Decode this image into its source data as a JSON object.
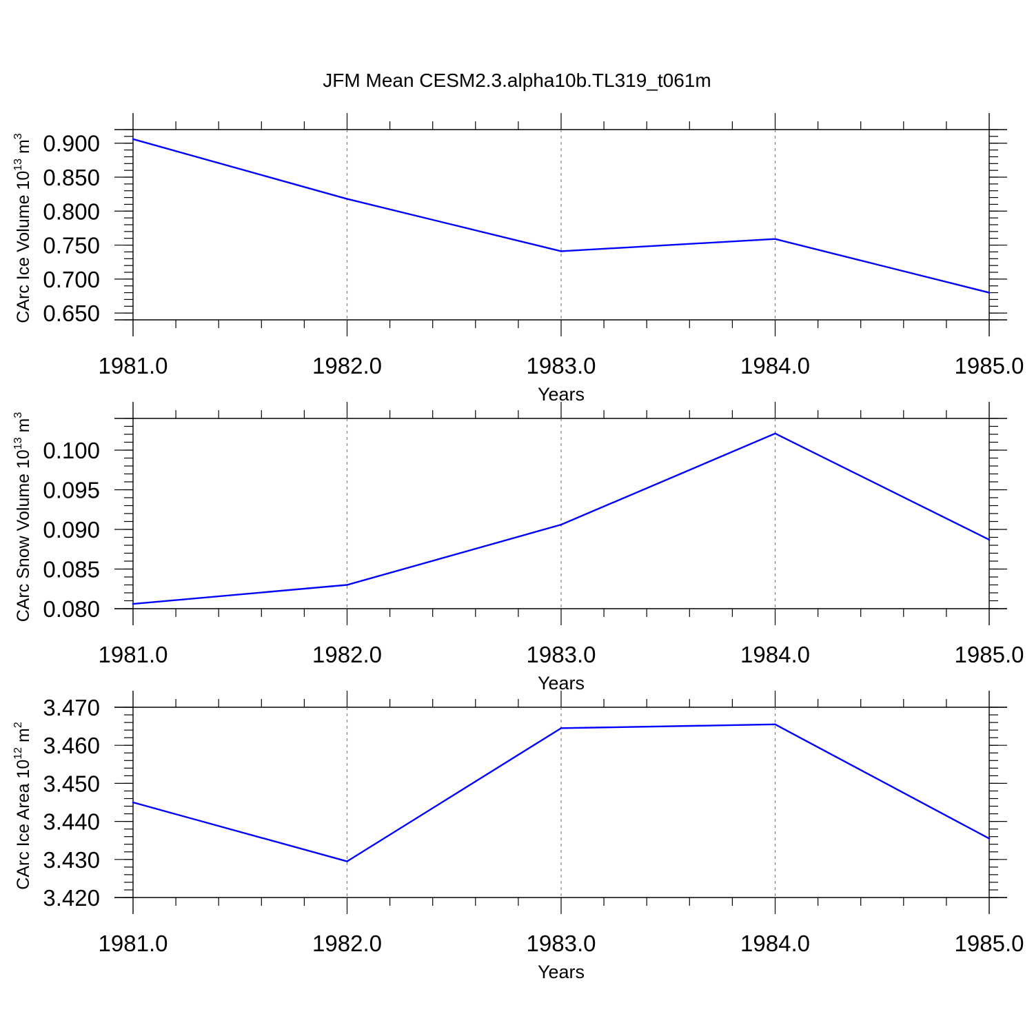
{
  "title": "JFM Mean CESM2.3.alpha10b.TL319_t061m",
  "line_color": "#0000ff",
  "chart_data": [
    {
      "type": "line",
      "x": [
        1981,
        1982,
        1983,
        1984,
        1985
      ],
      "values": [
        0.906,
        0.818,
        0.741,
        0.759,
        0.68
      ],
      "xlabel": "Years",
      "ylabel": {
        "main": "CArc Ice Volume 10",
        "exp": "13",
        "unit": " m",
        "unit_exp": "3"
      },
      "xlim": [
        1981,
        1985
      ],
      "ylim": [
        0.64,
        0.92
      ],
      "x_ticks": [
        1981,
        1982,
        1983,
        1984,
        1985
      ],
      "x_tick_labels": [
        "1981.0",
        "1982.0",
        "1983.0",
        "1984.0",
        "1985.0"
      ],
      "y_ticks": [
        0.65,
        0.7,
        0.75,
        0.8,
        0.85,
        0.9
      ],
      "y_tick_labels": [
        "0.650",
        "0.700",
        "0.750",
        "0.800",
        "0.850",
        "0.900"
      ],
      "y_minor_step": 0.01,
      "grid": "x-dashed"
    },
    {
      "type": "line",
      "x": [
        1981,
        1982,
        1983,
        1984,
        1985
      ],
      "values": [
        0.0806,
        0.083,
        0.0906,
        0.1021,
        0.0887
      ],
      "xlabel": "Years",
      "ylabel": {
        "main": "CArc Snow Volume 10",
        "exp": "13",
        "unit": " m",
        "unit_exp": "3"
      },
      "xlim": [
        1981,
        1985
      ],
      "ylim": [
        0.08,
        0.104
      ],
      "x_ticks": [
        1981,
        1982,
        1983,
        1984,
        1985
      ],
      "x_tick_labels": [
        "1981.0",
        "1982.0",
        "1983.0",
        "1984.0",
        "1985.0"
      ],
      "y_ticks": [
        0.08,
        0.085,
        0.09,
        0.095,
        0.1
      ],
      "y_tick_labels": [
        "0.080",
        "0.085",
        "0.090",
        "0.095",
        "0.100"
      ],
      "y_minor_step": 0.001,
      "grid": "x-dashed"
    },
    {
      "type": "line",
      "x": [
        1981,
        1982,
        1983,
        1984,
        1985
      ],
      "values": [
        3.445,
        3.4295,
        3.4645,
        3.4655,
        3.4355
      ],
      "xlabel": "Years",
      "ylabel": {
        "main": "CArc Ice Area 10",
        "exp": "12",
        "unit": " m",
        "unit_exp": "2"
      },
      "xlim": [
        1981,
        1985
      ],
      "ylim": [
        3.42,
        3.47
      ],
      "x_ticks": [
        1981,
        1982,
        1983,
        1984,
        1985
      ],
      "x_tick_labels": [
        "1981.0",
        "1982.0",
        "1983.0",
        "1984.0",
        "1985.0"
      ],
      "y_ticks": [
        3.42,
        3.43,
        3.44,
        3.45,
        3.46,
        3.47
      ],
      "y_tick_labels": [
        "3.420",
        "3.430",
        "3.440",
        "3.450",
        "3.460",
        "3.470"
      ],
      "y_minor_step": 0.002,
      "grid": "x-dashed"
    }
  ]
}
